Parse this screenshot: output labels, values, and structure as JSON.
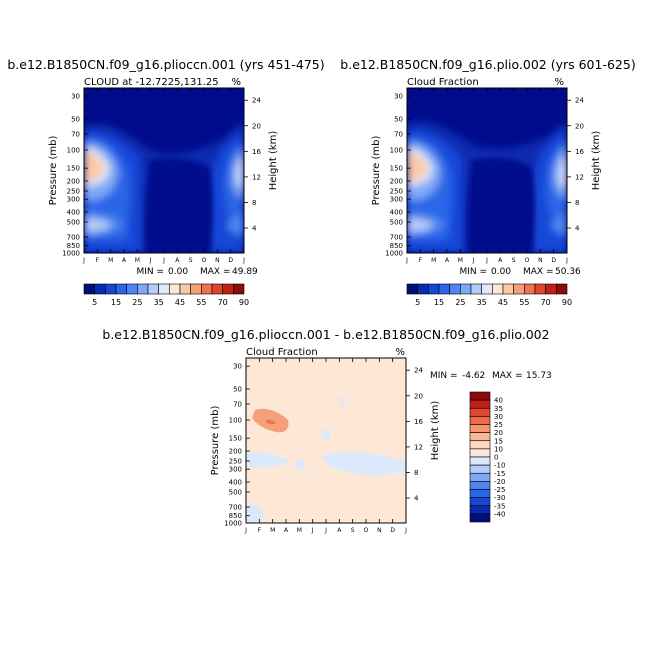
{
  "chart_data": [
    {
      "type": "heatmap",
      "id": "p1",
      "title": "b.e12.B1850CN.f09_g16.plioccn.001 (yrs 451-475)",
      "subtitle": "CLOUD at -12.7225,131.25",
      "units": "%",
      "ylabel_left": "Pressure (mb)",
      "ylabel_right": "Height (km)",
      "x_ticks": [
        "J",
        "F",
        "M",
        "A",
        "M",
        "J",
        "J",
        "A",
        "S",
        "O",
        "N",
        "D",
        "J"
      ],
      "y_ticks_pressure": [
        "30",
        "50",
        "70",
        "100",
        "150",
        "200",
        "250",
        "300",
        "400",
        "500",
        "700",
        "850",
        "1000"
      ],
      "y_ticks_height": [
        "24",
        "20",
        "16",
        "12",
        "8",
        "4"
      ],
      "stats": {
        "min_label": "MIN =",
        "min": "0.00",
        "max_label": "MAX =",
        "max": "49.89"
      },
      "colorbar": {
        "labels": [
          "5",
          "15",
          "25",
          "35",
          "45",
          "55",
          "70",
          "90"
        ]
      }
    },
    {
      "type": "heatmap",
      "id": "p2",
      "title": "b.e12.B1850CN.f09_g16.plio.002 (yrs 601-625)",
      "subtitle": "Cloud Fraction",
      "units": "%",
      "ylabel_left": "Pressure (mb)",
      "ylabel_right": "Height (km)",
      "x_ticks": [
        "J",
        "F",
        "M",
        "A",
        "M",
        "J",
        "J",
        "A",
        "S",
        "O",
        "N",
        "D",
        "J"
      ],
      "y_ticks_pressure": [
        "30",
        "50",
        "70",
        "100",
        "150",
        "200",
        "250",
        "300",
        "400",
        "500",
        "700",
        "850",
        "1000"
      ],
      "y_ticks_height": [
        "24",
        "20",
        "16",
        "12",
        "8",
        "4"
      ],
      "stats": {
        "min_label": "MIN =",
        "min": "0.00",
        "max_label": "MAX =",
        "max": "50.36"
      },
      "colorbar": {
        "labels": [
          "5",
          "15",
          "25",
          "35",
          "45",
          "55",
          "70",
          "90"
        ]
      }
    },
    {
      "type": "heatmap",
      "id": "p3",
      "title": "b.e12.B1850CN.f09_g16.plioccn.001 - b.e12.B1850CN.f09_g16.plio.002",
      "subtitle": "Cloud Fraction",
      "units": "%",
      "ylabel_left": "Pressure (mb)",
      "ylabel_right": "Height (km)",
      "x_ticks": [
        "J",
        "F",
        "M",
        "A",
        "M",
        "J",
        "J",
        "A",
        "S",
        "O",
        "N",
        "D",
        "J"
      ],
      "y_ticks_pressure": [
        "30",
        "50",
        "70",
        "100",
        "150",
        "200",
        "250",
        "300",
        "400",
        "500",
        "700",
        "850",
        "1000"
      ],
      "y_ticks_height": [
        "24",
        "20",
        "16",
        "12",
        "8",
        "4"
      ],
      "stats": {
        "min_label": "MIN =",
        "min": "-4.62",
        "max_label": "MAX =",
        "max": "15.73"
      },
      "colorbar": {
        "labels": [
          "40",
          "35",
          "30",
          "25",
          "20",
          "15",
          "10",
          "0",
          "-10",
          "-15",
          "-20",
          "-25",
          "-30",
          "-35",
          "-40"
        ]
      }
    }
  ],
  "colors": {
    "background_low": "#000c8c",
    "seq_scale": [
      "#00107a",
      "#0a2bb0",
      "#1446d8",
      "#2a66e8",
      "#4d86f0",
      "#7fa9f5",
      "#b5ccf8",
      "#dfe9fb",
      "#fde7d6",
      "#fbc9a8",
      "#f6a07a",
      "#ee7350",
      "#df4630",
      "#c11f18",
      "#8c0b0b"
    ],
    "diff_scale": [
      "#8c0b0b",
      "#c11f18",
      "#df4630",
      "#ee6a48",
      "#f6956e",
      "#fbb898",
      "#fdd9c3",
      "#fde7d6",
      "#dce8fb",
      "#b5ccf8",
      "#7fa9f5",
      "#4d86f0",
      "#2a66e8",
      "#1446d8",
      "#0a2bb0",
      "#00107a"
    ],
    "diff_bg": "#fde7d6",
    "diff_low": "#dce8fb",
    "diff_high": "#f6a07a"
  }
}
